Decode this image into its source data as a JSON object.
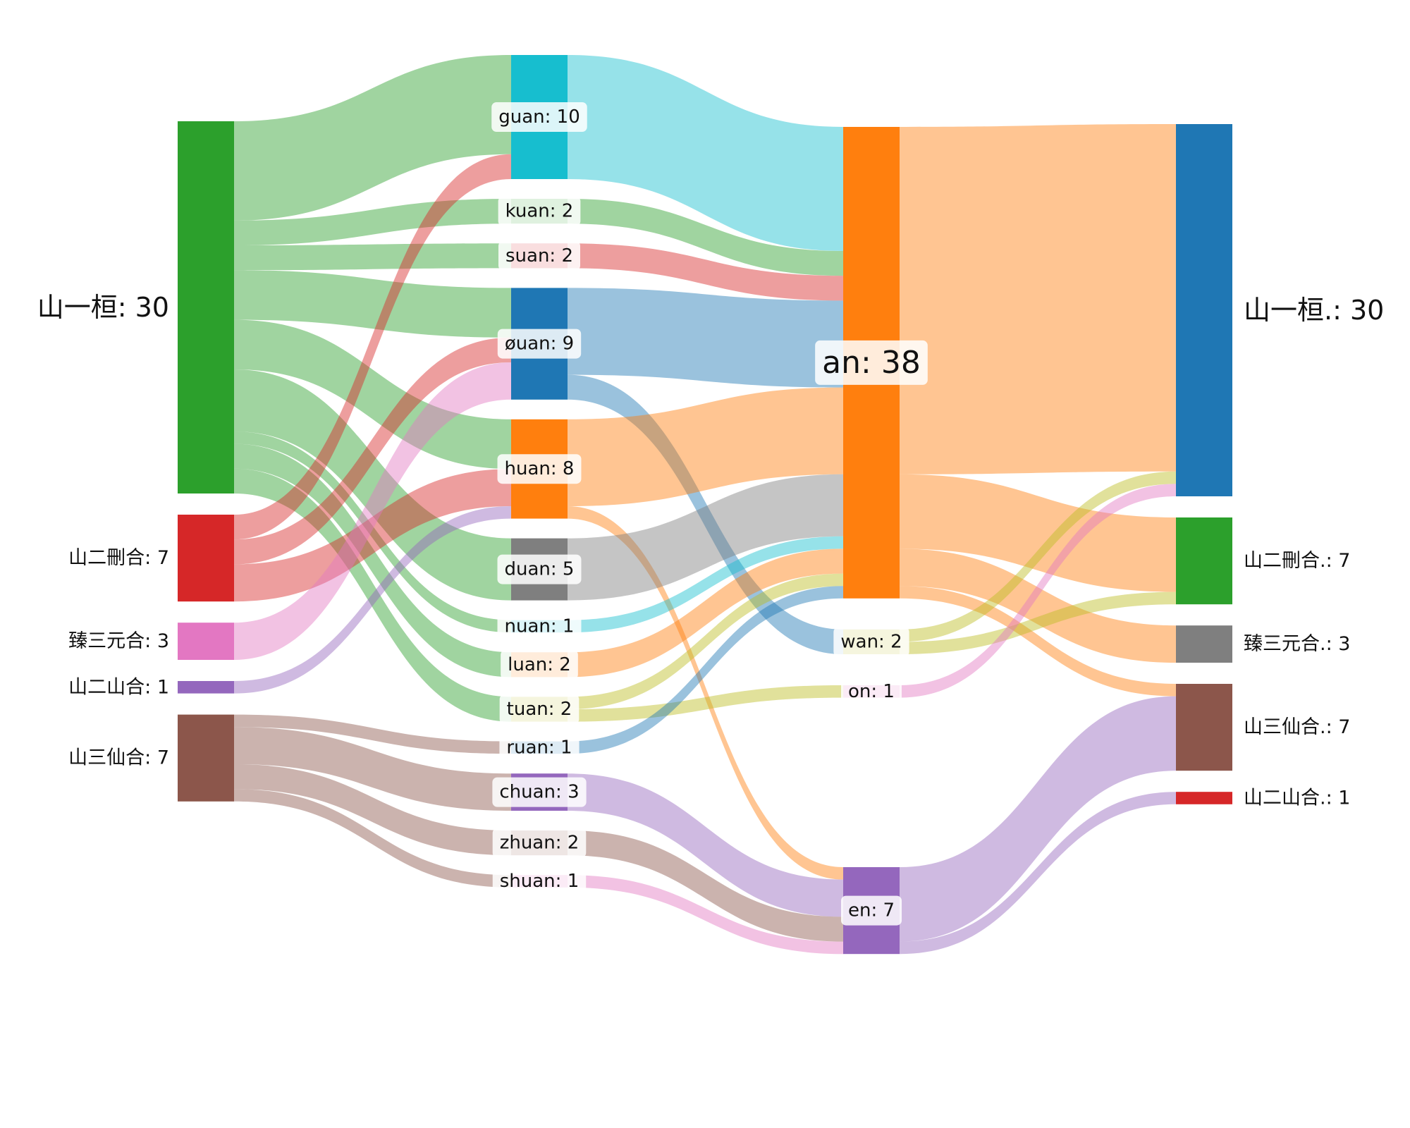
{
  "diagram": {
    "type": "sankey",
    "node_color_map": {
      "green": "#2ca02c",
      "red": "#d62728",
      "pink": "#e377c2",
      "purple": "#9467bd",
      "brown": "#8c564b",
      "cyan": "#17becf",
      "blue": "#1f77b4",
      "orange": "#ff7f0e",
      "gray": "#7f7f7f",
      "olive": "#bcbd22"
    },
    "columns": [
      {
        "nodes": [
          {
            "id": "s1",
            "label": "山一桓: 30",
            "value": 30,
            "color": "green"
          },
          {
            "id": "s2",
            "label": "山二刪合: 7",
            "value": 7,
            "color": "red"
          },
          {
            "id": "s3",
            "label": "臻三元合: 3",
            "value": 3,
            "color": "pink"
          },
          {
            "id": "s4",
            "label": "山二山合: 1",
            "value": 1,
            "color": "purple"
          },
          {
            "id": "s5",
            "label": "山三仙合: 7",
            "value": 7,
            "color": "brown"
          }
        ]
      },
      {
        "nodes": [
          {
            "id": "guan",
            "label": "guan: 10",
            "value": 10,
            "color": "cyan"
          },
          {
            "id": "kuan",
            "label": "kuan: 2",
            "value": 2,
            "color": "green"
          },
          {
            "id": "suan",
            "label": "suan: 2",
            "value": 2,
            "color": "red"
          },
          {
            "id": "ouan",
            "label": "øuan: 9",
            "value": 9,
            "color": "blue"
          },
          {
            "id": "huan",
            "label": "huan: 8",
            "value": 8,
            "color": "orange"
          },
          {
            "id": "duan",
            "label": "duan: 5",
            "value": 5,
            "color": "gray"
          },
          {
            "id": "nuan",
            "label": "nuan: 1",
            "value": 1,
            "color": "cyan"
          },
          {
            "id": "luan",
            "label": "luan: 2",
            "value": 2,
            "color": "orange"
          },
          {
            "id": "tuan",
            "label": "tuan: 2",
            "value": 2,
            "color": "olive"
          },
          {
            "id": "ruan",
            "label": "ruan: 1",
            "value": 1,
            "color": "blue"
          },
          {
            "id": "chuan",
            "label": "chuan: 3",
            "value": 3,
            "color": "purple"
          },
          {
            "id": "zhuan",
            "label": "zhuan: 2",
            "value": 2,
            "color": "brown"
          },
          {
            "id": "shuan",
            "label": "shuan: 1",
            "value": 1,
            "color": "pink"
          }
        ]
      },
      {
        "nodes": [
          {
            "id": "an",
            "label": "an: 38",
            "value": 38,
            "color": "orange"
          },
          {
            "id": "wan",
            "label": "wan: 2",
            "value": 2,
            "color": "olive"
          },
          {
            "id": "on",
            "label": "on: 1",
            "value": 1,
            "color": "pink"
          },
          {
            "id": "en",
            "label": "en: 7",
            "value": 7,
            "color": "purple"
          }
        ]
      },
      {
        "nodes": [
          {
            "id": "t1",
            "label": "山一桓.: 30",
            "value": 30,
            "color": "blue"
          },
          {
            "id": "t2",
            "label": "山二刪合.: 7",
            "value": 7,
            "color": "green"
          },
          {
            "id": "t3",
            "label": "臻三元合.: 3",
            "value": 3,
            "color": "gray"
          },
          {
            "id": "t4",
            "label": "山三仙合.: 7",
            "value": 7,
            "color": "brown"
          },
          {
            "id": "t5",
            "label": "山二山合.: 1",
            "value": 1,
            "color": "red"
          }
        ]
      }
    ],
    "links": [
      {
        "source": "s1",
        "target": "guan",
        "value": 8
      },
      {
        "source": "s1",
        "target": "kuan",
        "value": 2
      },
      {
        "source": "s1",
        "target": "suan",
        "value": 2
      },
      {
        "source": "s1",
        "target": "ouan",
        "value": 4
      },
      {
        "source": "s1",
        "target": "huan",
        "value": 4
      },
      {
        "source": "s1",
        "target": "duan",
        "value": 5
      },
      {
        "source": "s1",
        "target": "nuan",
        "value": 1
      },
      {
        "source": "s1",
        "target": "luan",
        "value": 2
      },
      {
        "source": "s1",
        "target": "tuan",
        "value": 2
      },
      {
        "source": "s2",
        "target": "guan",
        "value": 2
      },
      {
        "source": "s2",
        "target": "ouan",
        "value": 2
      },
      {
        "source": "s2",
        "target": "huan",
        "value": 3
      },
      {
        "source": "s3",
        "target": "ouan",
        "value": 3
      },
      {
        "source": "s4",
        "target": "huan",
        "value": 1
      },
      {
        "source": "s5",
        "target": "ruan",
        "value": 1
      },
      {
        "source": "s5",
        "target": "chuan",
        "value": 3
      },
      {
        "source": "s5",
        "target": "zhuan",
        "value": 2
      },
      {
        "source": "s5",
        "target": "shuan",
        "value": 1
      },
      {
        "source": "guan",
        "target": "an",
        "value": 10
      },
      {
        "source": "kuan",
        "target": "an",
        "value": 2
      },
      {
        "source": "suan",
        "target": "an",
        "value": 2
      },
      {
        "source": "ouan",
        "target": "an",
        "value": 7
      },
      {
        "source": "ouan",
        "target": "wan",
        "value": 2
      },
      {
        "source": "huan",
        "target": "an",
        "value": 7
      },
      {
        "source": "huan",
        "target": "en",
        "value": 1
      },
      {
        "source": "duan",
        "target": "an",
        "value": 5
      },
      {
        "source": "nuan",
        "target": "an",
        "value": 1
      },
      {
        "source": "luan",
        "target": "an",
        "value": 2
      },
      {
        "source": "tuan",
        "target": "an",
        "value": 1
      },
      {
        "source": "tuan",
        "target": "on",
        "value": 1
      },
      {
        "source": "ruan",
        "target": "an",
        "value": 1
      },
      {
        "source": "chuan",
        "target": "en",
        "value": 3
      },
      {
        "source": "zhuan",
        "target": "en",
        "value": 2
      },
      {
        "source": "shuan",
        "target": "en",
        "value": 1
      },
      {
        "source": "an",
        "target": "t1",
        "value": 28
      },
      {
        "source": "an",
        "target": "t2",
        "value": 6
      },
      {
        "source": "an",
        "target": "t3",
        "value": 3
      },
      {
        "source": "an",
        "target": "t4",
        "value": 1
      },
      {
        "source": "wan",
        "target": "t1",
        "value": 1
      },
      {
        "source": "wan",
        "target": "t2",
        "value": 1
      },
      {
        "source": "on",
        "target": "t1",
        "value": 1
      },
      {
        "source": "en",
        "target": "t4",
        "value": 6
      },
      {
        "source": "en",
        "target": "t5",
        "value": 1
      }
    ]
  }
}
